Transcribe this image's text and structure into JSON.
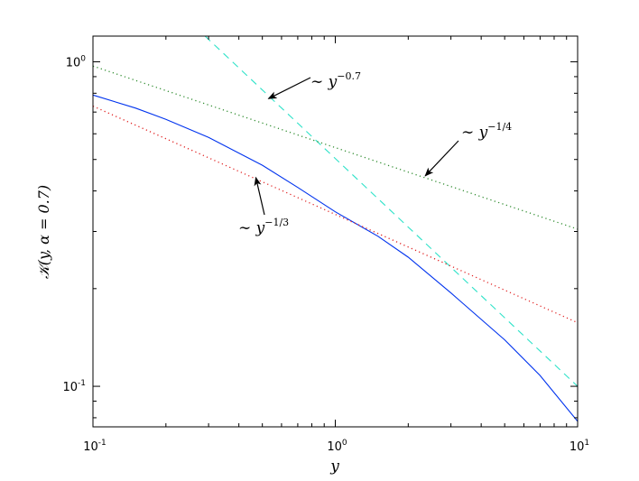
{
  "chart_data": {
    "type": "line",
    "title": "",
    "xlabel": "y",
    "ylabel": "𝒦(y, α = 0.7)",
    "xscale": "log",
    "yscale": "log",
    "xlim": [
      0.1,
      10
    ],
    "ylim": [
      0.075,
      1.2
    ],
    "grid": false,
    "x_ticks": [
      {
        "value": 0.1,
        "base": "10",
        "exp": "-1"
      },
      {
        "value": 1,
        "base": "10",
        "exp": "0"
      },
      {
        "value": 10,
        "base": "10",
        "exp": "1"
      }
    ],
    "y_ticks": [
      {
        "value": 0.1,
        "base": "10",
        "exp": "-1"
      },
      {
        "value": 1,
        "base": "10",
        "exp": "0"
      }
    ],
    "series": [
      {
        "color": "#0033ee",
        "style": "solid",
        "x": [
          0.1,
          0.15,
          0.2,
          0.3,
          0.5,
          0.7,
          1,
          1.5,
          2,
          3,
          5,
          7,
          10
        ],
        "y": [
          0.79,
          0.72,
          0.665,
          0.585,
          0.48,
          0.41,
          0.345,
          0.29,
          0.25,
          0.194,
          0.139,
          0.108,
          0.078
        ]
      },
      {
        "color": "#2de2c8",
        "style": "dashed",
        "x": [
          0.29,
          10
        ],
        "y": [
          1.2,
          0.1
        ]
      },
      {
        "color": "#2e8b2e",
        "style": "dotted",
        "x": [
          0.1,
          10
        ],
        "y": [
          0.97,
          0.305
        ]
      },
      {
        "color": "#e02020",
        "style": "dotted",
        "x": [
          0.1,
          10
        ],
        "y": [
          0.73,
          0.157
        ]
      }
    ],
    "annotations": [
      {
        "base": "∼ y",
        "exp": "−0.7",
        "arrow_to": [
          0.53,
          0.77
        ]
      },
      {
        "base": "∼ y",
        "exp": "−1/4",
        "arrow_to": [
          2.35,
          0.445
        ]
      },
      {
        "base": "∼ y",
        "exp": "−1/3",
        "arrow_to": [
          0.47,
          0.44
        ]
      }
    ]
  }
}
